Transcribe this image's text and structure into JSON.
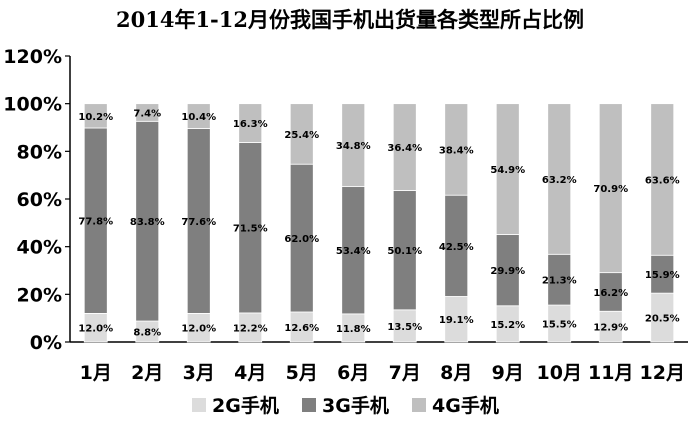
{
  "chart_data": {
    "type": "bar",
    "stacked": true,
    "title": "2014年1-12月份我国手机出货量各类型所占比例",
    "categories": [
      "1月",
      "2月",
      "3月",
      "4月",
      "5月",
      "6月",
      "7月",
      "8月",
      "9月",
      "10月",
      "11月",
      "12月"
    ],
    "series": [
      {
        "name": "2G手机",
        "color": "#dcdcdc",
        "values": [
          12.0,
          8.8,
          12.0,
          12.2,
          12.6,
          11.8,
          13.5,
          19.1,
          15.2,
          15.5,
          12.9,
          20.5
        ],
        "labels": [
          "12.0%",
          "8.8%",
          "12.0%",
          "12.2%",
          "12.6%",
          "11.8%",
          "13.5%",
          "19.1%",
          "15.2%",
          "15.5%",
          "12.9%",
          "20.5%"
        ]
      },
      {
        "name": "3G手机",
        "color": "#7f7f7f",
        "values": [
          77.8,
          83.8,
          77.6,
          71.5,
          62.0,
          53.4,
          50.1,
          42.5,
          29.9,
          21.3,
          16.2,
          15.9
        ],
        "labels": [
          "77.8%",
          "83.8%",
          "77.6%",
          "71.5%",
          "62.0%",
          "53.4%",
          "50.1%",
          "42.5%",
          "29.9%",
          "21.3%",
          "16.2%",
          "15.9%"
        ]
      },
      {
        "name": "4G手机",
        "color": "#bfbfbf",
        "values": [
          10.2,
          7.4,
          10.4,
          16.3,
          25.4,
          34.8,
          36.4,
          38.4,
          54.9,
          63.2,
          70.9,
          63.6
        ],
        "labels": [
          "10.2%",
          "7.4%",
          "10.4%",
          "16.3%",
          "25.4%",
          "34.8%",
          "36.4%",
          "38.4%",
          "54.9%",
          "63.2%",
          "70.9%",
          "63.6%"
        ]
      }
    ],
    "y_ticks": [
      "0%",
      "20%",
      "40%",
      "60%",
      "80%",
      "100%",
      "120%"
    ],
    "ylim": [
      0,
      120
    ],
    "legend_position": "bottom",
    "grid": false
  }
}
